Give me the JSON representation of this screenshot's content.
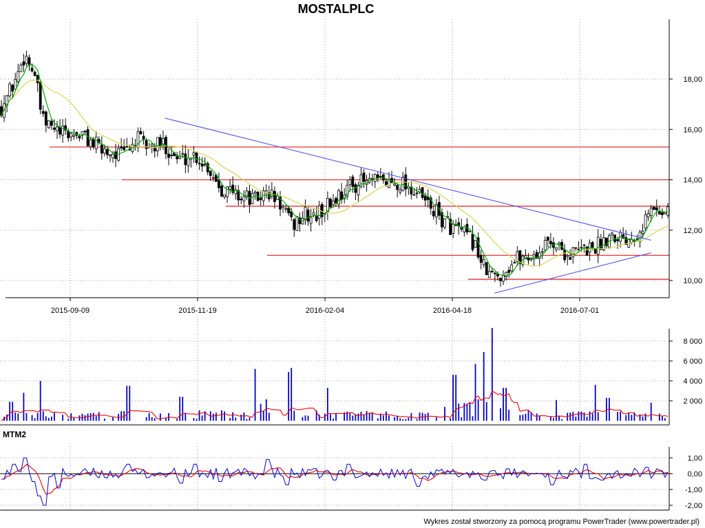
{
  "chart_data": [
    {
      "type": "candlestick",
      "title": "MOSTALPLC",
      "x_ticks": [
        "2015-09-09",
        "2015-11-19",
        "2016-02-04",
        "2016-04-18",
        "2016-07-01"
      ],
      "y_ticks": [
        "10,00",
        "12,00",
        "14,00",
        "16,00",
        "18,00"
      ],
      "ylim": [
        9.4,
        20.0
      ],
      "grid": true,
      "support_resistance_levels": [
        15.3,
        14.0,
        12.95,
        11.0,
        10.05
      ],
      "trendlines": [
        {
          "from": [
            0.245,
            16.45
          ],
          "to": [
            0.975,
            11.6
          ]
        },
        {
          "from": [
            0.74,
            9.5
          ],
          "to": [
            0.975,
            11.1
          ]
        }
      ],
      "moving_average_colors": {
        "fast": "#00aa00",
        "slow": "#d8d860"
      },
      "anchors": [
        [
          0.0,
          16.9
        ],
        [
          0.02,
          17.9
        ],
        [
          0.035,
          19.0
        ],
        [
          0.05,
          18.2
        ],
        [
          0.062,
          16.3
        ],
        [
          0.09,
          15.8
        ],
        [
          0.12,
          15.8
        ],
        [
          0.15,
          15.2
        ],
        [
          0.18,
          15.0
        ],
        [
          0.205,
          15.6
        ],
        [
          0.22,
          15.3
        ],
        [
          0.245,
          15.4
        ],
        [
          0.265,
          14.8
        ],
        [
          0.29,
          15.0
        ],
        [
          0.31,
          14.5
        ],
        [
          0.33,
          13.7
        ],
        [
          0.355,
          13.4
        ],
        [
          0.38,
          13.2
        ],
        [
          0.4,
          13.5
        ],
        [
          0.42,
          13.0
        ],
        [
          0.435,
          12.2
        ],
        [
          0.455,
          12.6
        ],
        [
          0.47,
          12.5
        ],
        [
          0.49,
          13.0
        ],
        [
          0.515,
          13.6
        ],
        [
          0.535,
          13.9
        ],
        [
          0.56,
          13.9
        ],
        [
          0.585,
          13.9
        ],
        [
          0.605,
          13.9
        ],
        [
          0.625,
          13.4
        ],
        [
          0.645,
          12.9
        ],
        [
          0.665,
          12.3
        ],
        [
          0.69,
          11.9
        ],
        [
          0.71,
          11.5
        ],
        [
          0.725,
          10.4
        ],
        [
          0.74,
          10.1
        ],
        [
          0.755,
          10.4
        ],
        [
          0.775,
          10.9
        ],
        [
          0.8,
          11.0
        ],
        [
          0.825,
          11.6
        ],
        [
          0.85,
          11.0
        ],
        [
          0.87,
          11.2
        ],
        [
          0.895,
          11.4
        ],
        [
          0.915,
          11.9
        ],
        [
          0.94,
          11.7
        ],
        [
          0.955,
          12.0
        ],
        [
          0.968,
          12.5
        ],
        [
          0.975,
          12.8
        ]
      ]
    },
    {
      "type": "bar",
      "name": "volume",
      "y_ticks": [
        "2 000",
        "4 000",
        "6 000",
        "8 000"
      ],
      "ylim": [
        0,
        9500
      ],
      "spikes": [
        [
          0.015,
          1900
        ],
        [
          0.032,
          2800
        ],
        [
          0.058,
          4000
        ],
        [
          0.19,
          3500
        ],
        [
          0.27,
          2400
        ],
        [
          0.38,
          5200
        ],
        [
          0.43,
          4900
        ],
        [
          0.435,
          5300
        ],
        [
          0.49,
          3300
        ],
        [
          0.68,
          4600
        ],
        [
          0.71,
          5700
        ],
        [
          0.725,
          6900
        ],
        [
          0.735,
          9300
        ],
        [
          0.755,
          3300
        ],
        [
          0.89,
          3600
        ],
        [
          0.91,
          2300
        ],
        [
          0.975,
          1800
        ]
      ],
      "average_color": "#ee0000"
    },
    {
      "type": "line",
      "title": "MTM2",
      "y_ticks": [
        "-2,00",
        "-1,00",
        "0,00",
        "1,00"
      ],
      "ylim": [
        -2.1,
        1.2
      ],
      "series_colors": {
        "mtm": "#0000cc",
        "signal": "#ee0000"
      },
      "events": [
        [
          0.02,
          0.6
        ],
        [
          0.035,
          1.0
        ],
        [
          0.05,
          -0.5
        ],
        [
          0.058,
          -1.4
        ],
        [
          0.066,
          -2.0
        ],
        [
          0.085,
          -0.9
        ],
        [
          0.19,
          0.6
        ],
        [
          0.27,
          -0.6
        ],
        [
          0.29,
          0.6
        ],
        [
          0.33,
          -0.5
        ],
        [
          0.4,
          0.9
        ],
        [
          0.43,
          -0.7
        ],
        [
          0.5,
          -0.4
        ],
        [
          0.52,
          0.6
        ],
        [
          0.625,
          -0.8
        ],
        [
          0.725,
          -0.4
        ],
        [
          0.74,
          0.2
        ],
        [
          0.825,
          -0.7
        ],
        [
          0.875,
          0.6
        ],
        [
          0.9,
          -0.4
        ],
        [
          0.968,
          0.4
        ]
      ]
    }
  ],
  "footer": "Wykres został stworzony za pomocą programu PowerTrader (www.powertrader.pl)"
}
